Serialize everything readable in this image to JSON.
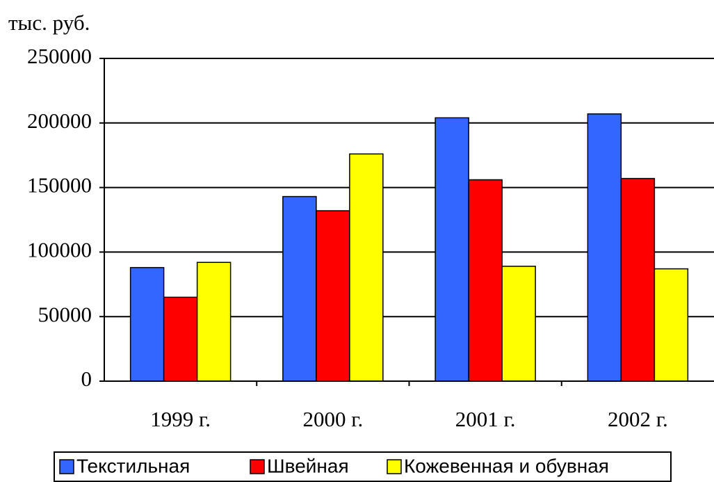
{
  "chart_data": {
    "type": "bar",
    "y_axis_label": "тыс. руб.",
    "categories": [
      "1999 г.",
      "2000 г.",
      "2001 г.",
      "2002 г."
    ],
    "series": [
      {
        "name": "Текстильная",
        "color": "#3366ff",
        "values": [
          88000,
          143000,
          204000,
          207000
        ]
      },
      {
        "name": "Швейная",
        "color": "#ff0000",
        "values": [
          65000,
          132000,
          156000,
          157000
        ]
      },
      {
        "name": "Кожевенная и обувная",
        "color": "#ffff00",
        "values": [
          92000,
          176000,
          89000,
          87000
        ]
      }
    ],
    "ylim": [
      0,
      250000
    ],
    "yticks": [
      0,
      50000,
      100000,
      150000,
      200000,
      250000
    ],
    "grid": true,
    "legend": "bottom"
  }
}
